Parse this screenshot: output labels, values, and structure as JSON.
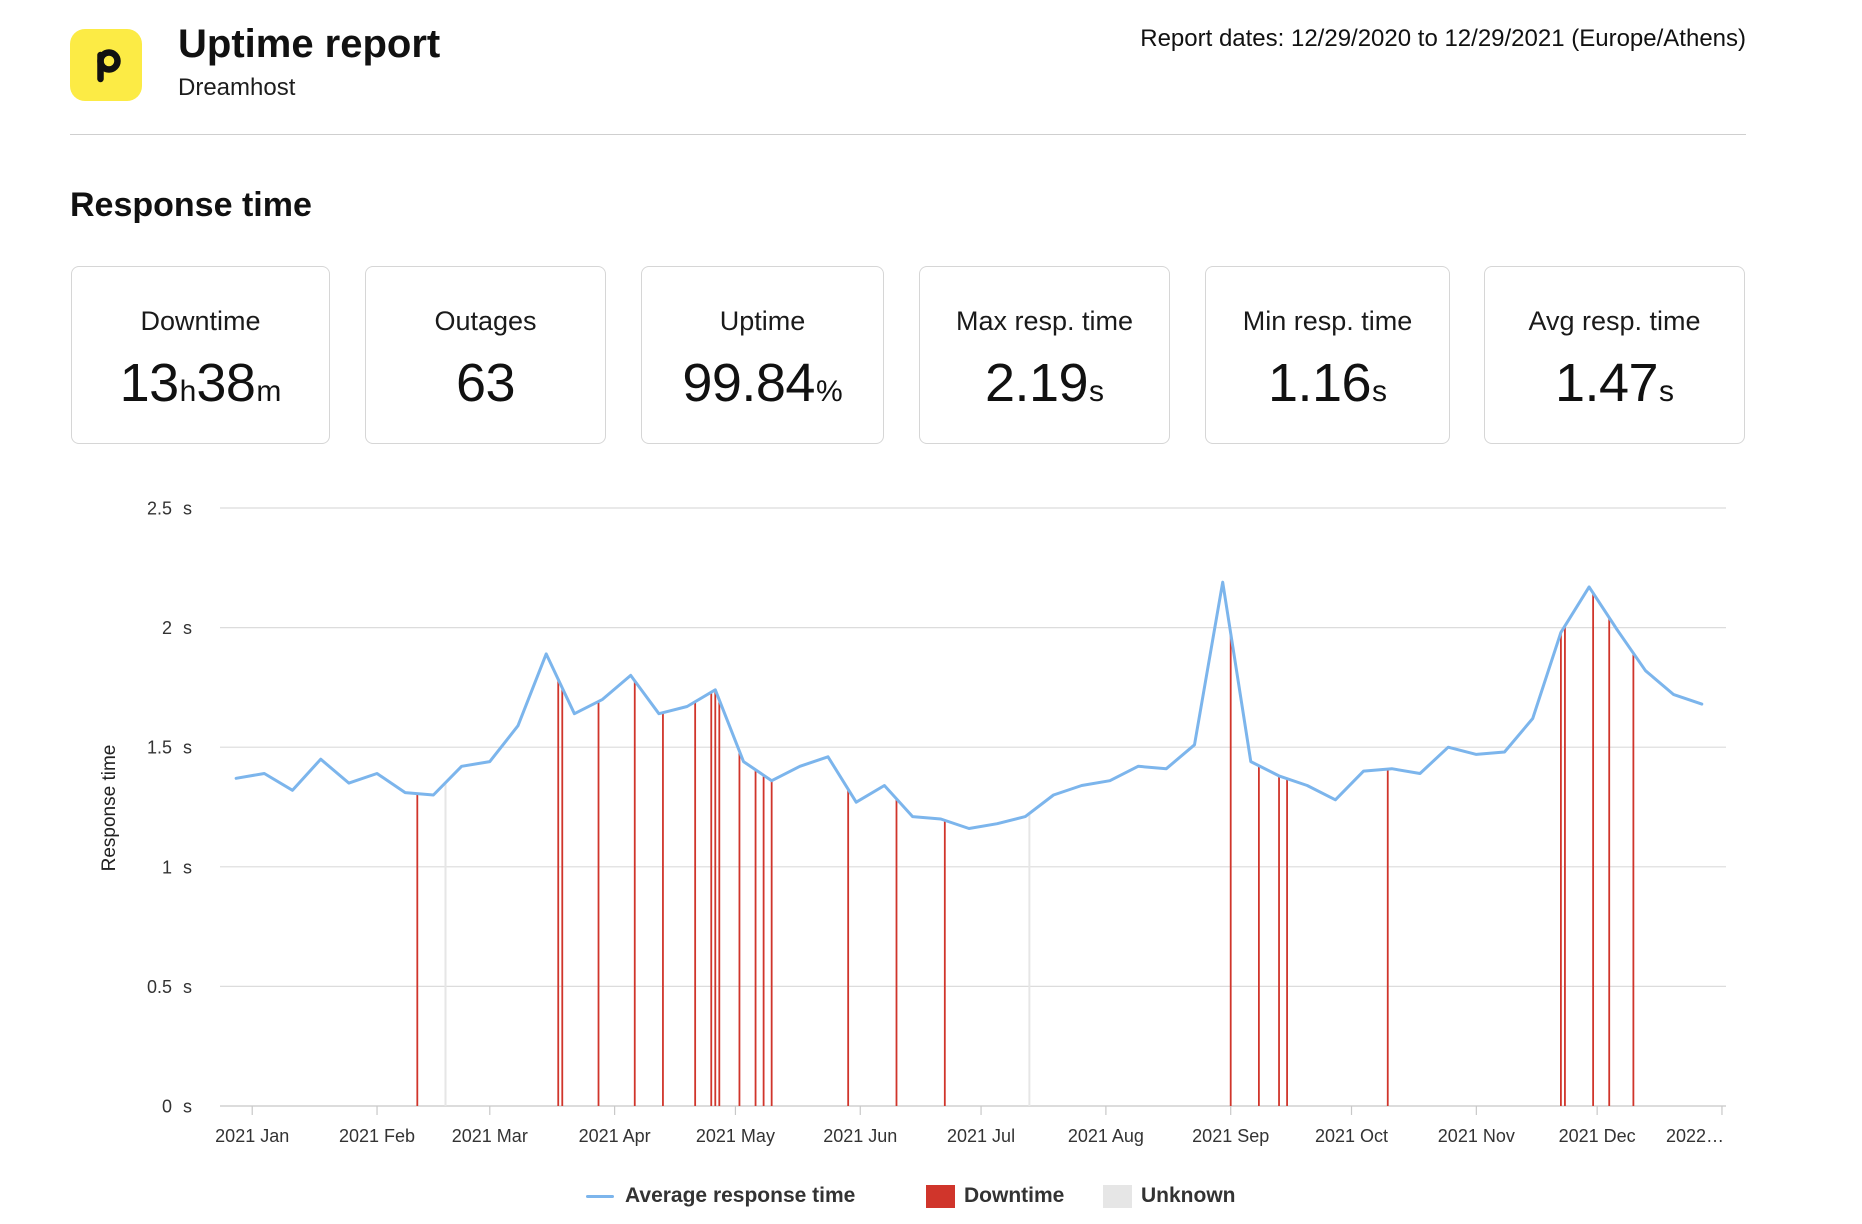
{
  "header": {
    "title": "Uptime report",
    "subtitle": "Dreamhost",
    "report_dates": "Report dates: 12/29/2020 to 12/29/2021 (Europe/Athens)"
  },
  "brand": {
    "accent": "#FCEB45",
    "logo_icon": "logo-p-icon"
  },
  "section_title": "Response time",
  "stats": [
    {
      "label": "Downtime",
      "parts": [
        {
          "num": "13",
          "unit": "h"
        },
        {
          "num": "38",
          "unit": "m"
        }
      ]
    },
    {
      "label": "Outages",
      "parts": [
        {
          "num": "63"
        }
      ]
    },
    {
      "label": "Uptime",
      "parts": [
        {
          "num": "99.84",
          "unit": "%"
        }
      ]
    },
    {
      "label": "Max resp. time",
      "parts": [
        {
          "num": "2.19",
          "unit": "s"
        }
      ]
    },
    {
      "label": "Min resp. time",
      "parts": [
        {
          "num": "1.16",
          "unit": "s"
        }
      ]
    },
    {
      "label": "Avg resp. time",
      "parts": [
        {
          "num": "1.47",
          "unit": "s"
        }
      ]
    }
  ],
  "chart_data": {
    "type": "line",
    "title": "",
    "xlabel": "",
    "ylabel": "Response time",
    "ylim": [
      0,
      2.5
    ],
    "xlim": [
      "2020-12-24",
      "2022-01-02"
    ],
    "grid": true,
    "legend_position": "bottom-center",
    "ytick_values": [
      0,
      0.5,
      1,
      1.5,
      2,
      2.5
    ],
    "ytick_labels": [
      "0 s",
      "0.5 s",
      "1 s",
      "1.5 s",
      "2 s",
      "2.5 s"
    ],
    "xtick_dates": [
      "2021-01-01",
      "2021-02-01",
      "2021-03-01",
      "2021-04-01",
      "2021-05-01",
      "2021-06-01",
      "2021-07-01",
      "2021-08-01",
      "2021-09-01",
      "2021-10-01",
      "2021-11-01",
      "2021-12-01",
      "2022-01-01"
    ],
    "xtick_labels": [
      "2021 Jan",
      "2021 Feb",
      "2021 Mar",
      "2021 Apr",
      "2021 May",
      "2021 Jun",
      "2021 Jul",
      "2021 Aug",
      "2021 Sep",
      "2021 Oct",
      "2021 Nov",
      "2021 Dec",
      "2022…"
    ],
    "colors": {
      "response_time": "#7CB5EC",
      "downtime": "#D0352B",
      "unknown": "#E6E6E6"
    },
    "legend": [
      {
        "name": "Average response time",
        "kind": "line"
      },
      {
        "name": "Downtime",
        "kind": "box"
      },
      {
        "name": "Unknown",
        "kind": "box"
      }
    ],
    "series": [
      {
        "name": "Average response time",
        "x": [
          "2020-12-28",
          "2021-01-04",
          "2021-01-11",
          "2021-01-18",
          "2021-01-25",
          "2021-02-01",
          "2021-02-08",
          "2021-02-15",
          "2021-02-22",
          "2021-03-01",
          "2021-03-08",
          "2021-03-15",
          "2021-03-22",
          "2021-03-29",
          "2021-04-05",
          "2021-04-12",
          "2021-04-19",
          "2021-04-26",
          "2021-05-03",
          "2021-05-10",
          "2021-05-17",
          "2021-05-24",
          "2021-05-31",
          "2021-06-07",
          "2021-06-14",
          "2021-06-21",
          "2021-06-28",
          "2021-07-05",
          "2021-07-12",
          "2021-07-19",
          "2021-07-26",
          "2021-08-02",
          "2021-08-09",
          "2021-08-16",
          "2021-08-23",
          "2021-08-30",
          "2021-09-06",
          "2021-09-13",
          "2021-09-20",
          "2021-09-27",
          "2021-10-04",
          "2021-10-11",
          "2021-10-18",
          "2021-10-25",
          "2021-11-01",
          "2021-11-08",
          "2021-11-15",
          "2021-11-22",
          "2021-11-29",
          "2021-12-06",
          "2021-12-13",
          "2021-12-20",
          "2021-12-27"
        ],
        "y": [
          1.37,
          1.39,
          1.32,
          1.45,
          1.35,
          1.39,
          1.31,
          1.3,
          1.42,
          1.44,
          1.59,
          1.89,
          1.64,
          1.7,
          1.8,
          1.64,
          1.67,
          1.74,
          1.44,
          1.36,
          1.42,
          1.46,
          1.27,
          1.34,
          1.21,
          1.2,
          1.16,
          1.18,
          1.21,
          1.3,
          1.34,
          1.36,
          1.42,
          1.41,
          1.51,
          2.19,
          1.44,
          1.38,
          1.34,
          1.28,
          1.4,
          1.41,
          1.39,
          1.5,
          1.47,
          1.48,
          1.62,
          1.98,
          2.17,
          1.99,
          1.82,
          1.72,
          1.68
        ]
      }
    ],
    "downtime_dates": [
      "2021-02-11",
      "2021-03-18",
      "2021-03-19",
      "2021-03-28",
      "2021-04-06",
      "2021-04-13",
      "2021-04-21",
      "2021-04-25",
      "2021-04-26",
      "2021-04-27",
      "2021-05-02",
      "2021-05-06",
      "2021-05-08",
      "2021-05-10",
      "2021-05-29",
      "2021-06-10",
      "2021-06-22",
      "2021-09-01",
      "2021-09-08",
      "2021-09-13",
      "2021-09-15",
      "2021-10-10",
      "2021-11-22",
      "2021-11-23",
      "2021-11-30",
      "2021-12-04",
      "2021-12-10"
    ],
    "unknown_dates": [
      "2021-02-18",
      "2021-07-13"
    ]
  }
}
